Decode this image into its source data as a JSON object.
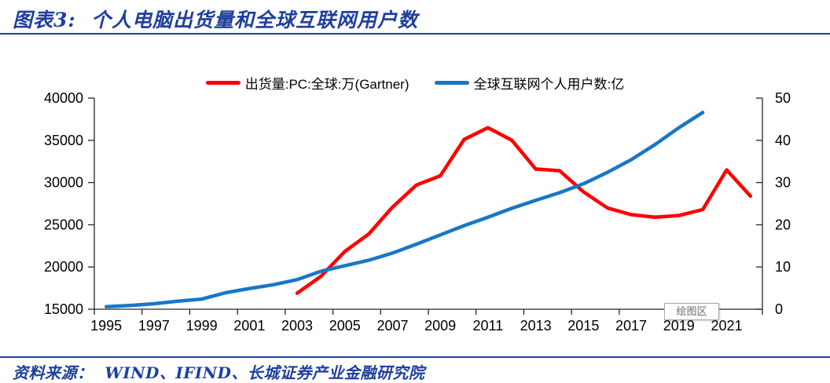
{
  "header": {
    "title": "图表3:  个人电脑出货量和全球互联网用户数"
  },
  "legend": {
    "items": [
      {
        "key": "pc-shipments",
        "label": "出货量:PC:全球:万(Gartner)",
        "color": "#ff0000"
      },
      {
        "key": "internet-users",
        "label": "全球互联网个人用户数:亿",
        "color": "#1777c8"
      }
    ]
  },
  "tooltip": {
    "label": "绘图区"
  },
  "footer": {
    "source": "资料来源：  WIND、IFIND、长城证券产业金融研究院"
  },
  "colors": {
    "accent_navy": "#1f3f9e",
    "series_red": "#ff0000",
    "series_blue": "#1777c8",
    "axis_text": "#000000",
    "tooltip_border": "#a8a8a8",
    "tooltip_text": "#6e6e6e"
  },
  "chart_data": {
    "type": "line",
    "title": "个人电脑出货量和全球互联网用户数",
    "grid": false,
    "legend_position": "top-center",
    "x_range": [
      1994.5,
      2022.5
    ],
    "x_tick_interval": 2,
    "x_tick_labels": [
      "1995",
      "1997",
      "1999",
      "2001",
      "2003",
      "2005",
      "2007",
      "2009",
      "2011",
      "2013",
      "2015",
      "2017",
      "2019",
      "2021"
    ],
    "left_axis": {
      "label": "出货量:PC:全球:万(Gartner)",
      "min": 15000,
      "max": 40000,
      "tick_labels": [
        "15000",
        "20000",
        "25000",
        "30000",
        "35000",
        "40000"
      ]
    },
    "right_axis": {
      "label": "全球互联网个人用户数:亿",
      "min": 0,
      "max": 50,
      "tick_labels": [
        "0",
        "10",
        "20",
        "30",
        "40",
        "50"
      ]
    },
    "series": [
      {
        "key": "pc-shipments",
        "name": "出货量:PC:全球:万(Gartner)",
        "axis": "left",
        "color": "#ff0000",
        "x": [
          2003,
          2004,
          2005,
          2006,
          2007,
          2008,
          2009,
          2010,
          2011,
          2012,
          2013,
          2014,
          2015,
          2016,
          2017,
          2018,
          2019,
          2020,
          2021,
          2022
        ],
        "values": [
          16900,
          18900,
          21850,
          23900,
          27100,
          29700,
          30800,
          35100,
          36500,
          35000,
          31600,
          31400,
          28900,
          27000,
          26200,
          25900,
          26100,
          26800,
          31500,
          28400
        ]
      },
      {
        "key": "internet-users",
        "name": "全球互联网个人用户数:亿",
        "axis": "right",
        "color": "#1777c8",
        "x": [
          1995,
          1996,
          1997,
          1998,
          1999,
          2000,
          2001,
          2002,
          2003,
          2004,
          2005,
          2006,
          2007,
          2008,
          2009,
          2010,
          2011,
          2012,
          2013,
          2014,
          2015,
          2016,
          2017,
          2018,
          2019,
          2020
        ],
        "values": [
          0.6,
          0.9,
          1.3,
          1.9,
          2.4,
          3.9,
          4.9,
          5.8,
          7.0,
          9.0,
          10.3,
          11.6,
          13.3,
          15.4,
          17.6,
          19.8,
          21.8,
          23.9,
          25.8,
          27.6,
          29.7,
          32.4,
          35.4,
          39.0,
          43.0,
          46.6
        ]
      }
    ]
  }
}
